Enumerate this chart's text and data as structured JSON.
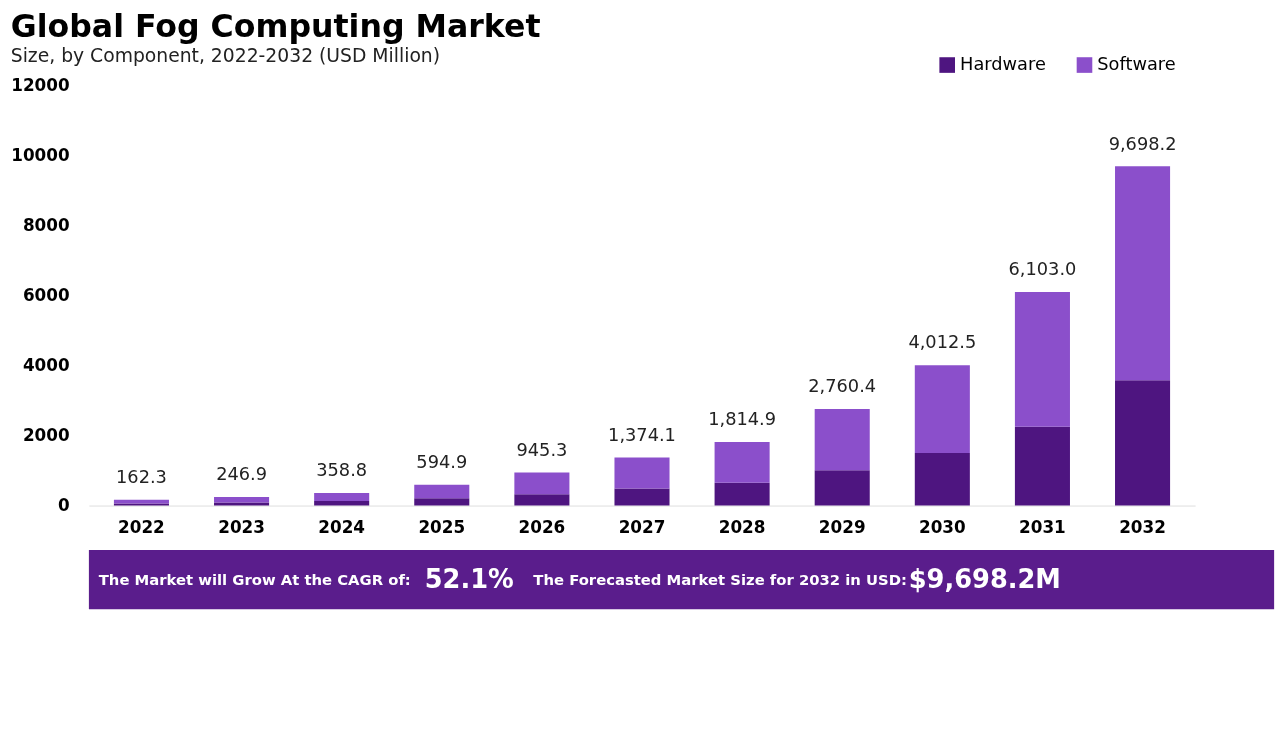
{
  "chart_data": {
    "type": "bar",
    "stacked": true,
    "title": "Global Fog Computing Market",
    "subtitle": "Size, by Component, 2022-2032 (USD Million)",
    "categories": [
      "2022",
      "2023",
      "2024",
      "2025",
      "2026",
      "2027",
      "2028",
      "2029",
      "2030",
      "2031",
      "2032"
    ],
    "series": [
      {
        "name": "Hardware",
        "color": "#4e1580",
        "values": [
          60,
          90,
          130,
          210,
          320,
          490,
          650,
          1010,
          1500,
          2250,
          3580
        ]
      },
      {
        "name": "Software",
        "color": "#8b4fcb",
        "values": [
          102.3,
          156.9,
          228.8,
          384.9,
          625.3,
          884.1,
          1164.9,
          1750.4,
          2512.5,
          3853.0,
          6118.2
        ]
      }
    ],
    "totals": [
      "162.3",
      "246.9",
      "358.8",
      "594.9",
      "945.3",
      "1,374.1",
      "1,814.9",
      "2,760.4",
      "4,012.5",
      "6,103.0",
      "9,698.2"
    ],
    "ylim": [
      0,
      12000
    ],
    "yticks": [
      0,
      2000,
      4000,
      6000,
      8000,
      10000,
      12000
    ],
    "grid": false,
    "legend": "top right",
    "annotations": [
      "The Market will Grow At the CAGR of:",
      "52.1%",
      "The Forecasted Market Size for 2032 in USD:",
      "$9,698.2M"
    ]
  }
}
